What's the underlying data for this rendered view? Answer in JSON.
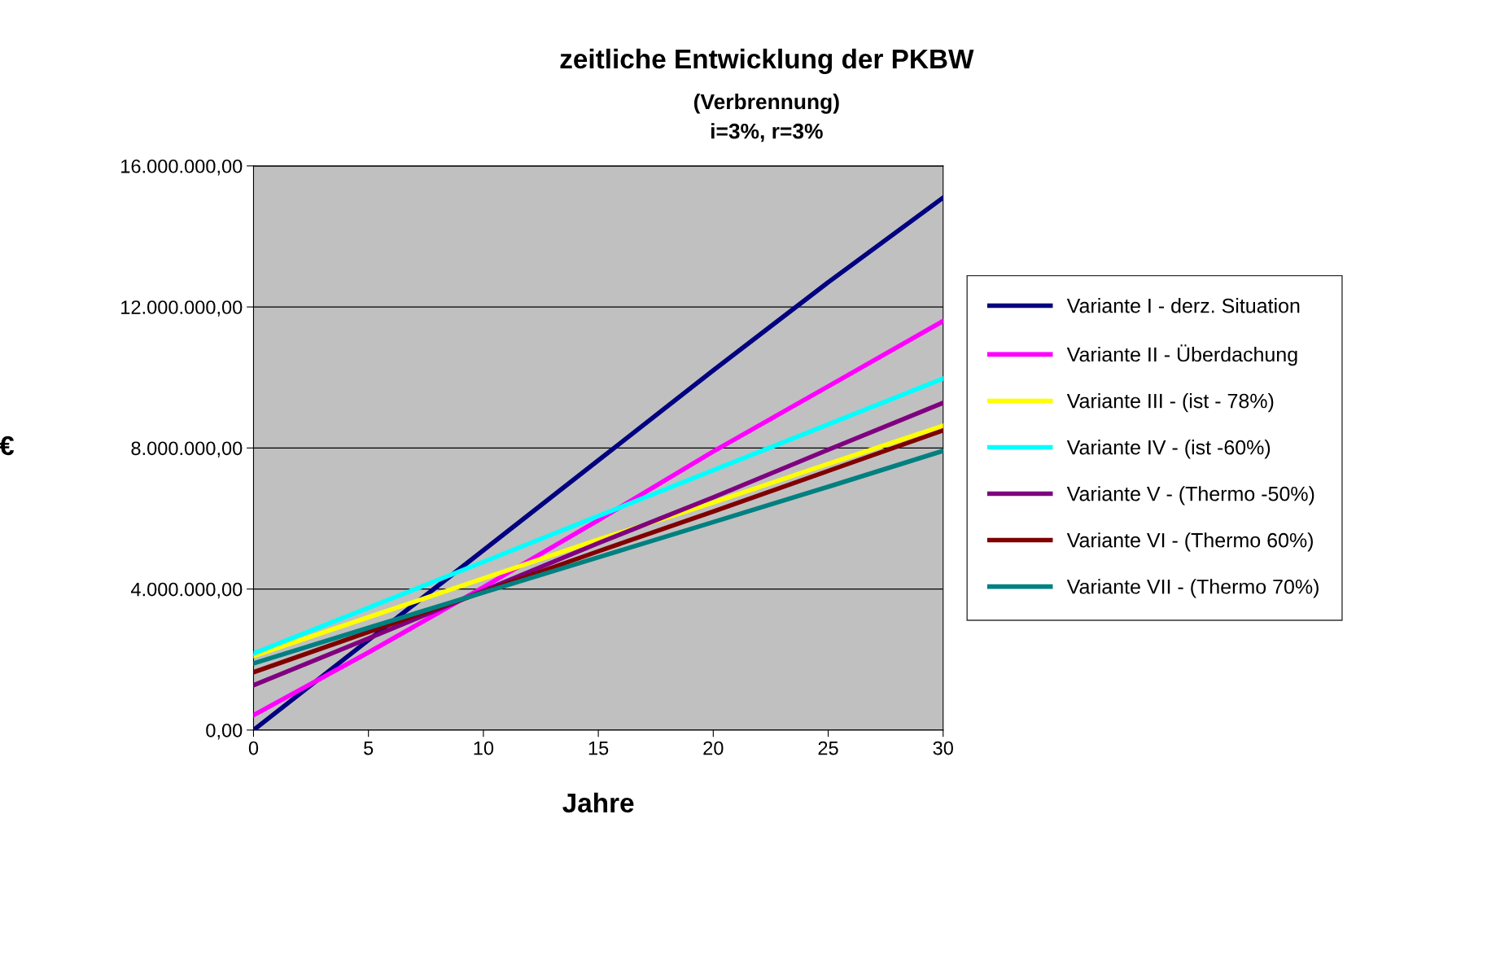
{
  "chart_data": {
    "type": "line",
    "title": "zeitliche Entwicklung der PKBW",
    "subtitle": "(Verbrennung)\ni=3%, r=3%",
    "xlabel": "Jahre",
    "ylabel": "€",
    "x": [
      0,
      5,
      10,
      15,
      20,
      25,
      30
    ],
    "series": [
      {
        "name": "Variante I - derz. Situation",
        "color": "#000080",
        "values": [
          0,
          2550000,
          5100000,
          7650000,
          10200000,
          12700000,
          15100000
        ]
      },
      {
        "name": "Variante II - Überdachung",
        "color": "#ff00ff",
        "values": [
          420000,
          2200000,
          4050000,
          5950000,
          7900000,
          9750000,
          11600000
        ]
      },
      {
        "name": "Variante III - (ist - 78%)",
        "color": "#ffff00",
        "values": [
          2100000,
          3200000,
          4300000,
          5400000,
          6450000,
          7550000,
          8630000
        ]
      },
      {
        "name": "Variante IV - (ist -60%)",
        "color": "#00ffff",
        "values": [
          2170000,
          3470000,
          4770000,
          6070000,
          7370000,
          8670000,
          9970000
        ]
      },
      {
        "name": "Variante V - (Thermo -50%)",
        "color": "#800080",
        "values": [
          1270000,
          2600000,
          3950000,
          5300000,
          6600000,
          7950000,
          9280000
        ]
      },
      {
        "name": "Variante VI - (Thermo 60%)",
        "color": "#800000",
        "values": [
          1640000,
          2780000,
          3920000,
          5070000,
          6200000,
          7350000,
          8500000
        ]
      },
      {
        "name": "Variante VII - (Thermo 70%)",
        "color": "#008080",
        "values": [
          1890000,
          2900000,
          3900000,
          4900000,
          5900000,
          6900000,
          7920000
        ]
      }
    ],
    "xlim": [
      0,
      30
    ],
    "xticks": [
      0,
      5,
      10,
      15,
      20,
      25,
      30
    ],
    "ylim": [
      0,
      16000000
    ],
    "yticks": [
      {
        "value": 0,
        "label": "0,00"
      },
      {
        "value": 4000000,
        "label": "4.000.000,00"
      },
      {
        "value": 8000000,
        "label": "8.000.000,00"
      },
      {
        "value": 12000000,
        "label": "12.000.000,00"
      },
      {
        "value": 16000000,
        "label": "16.000.000,00"
      }
    ],
    "grid": "y",
    "legend": "right",
    "marker": "none",
    "line_style": "solid"
  }
}
